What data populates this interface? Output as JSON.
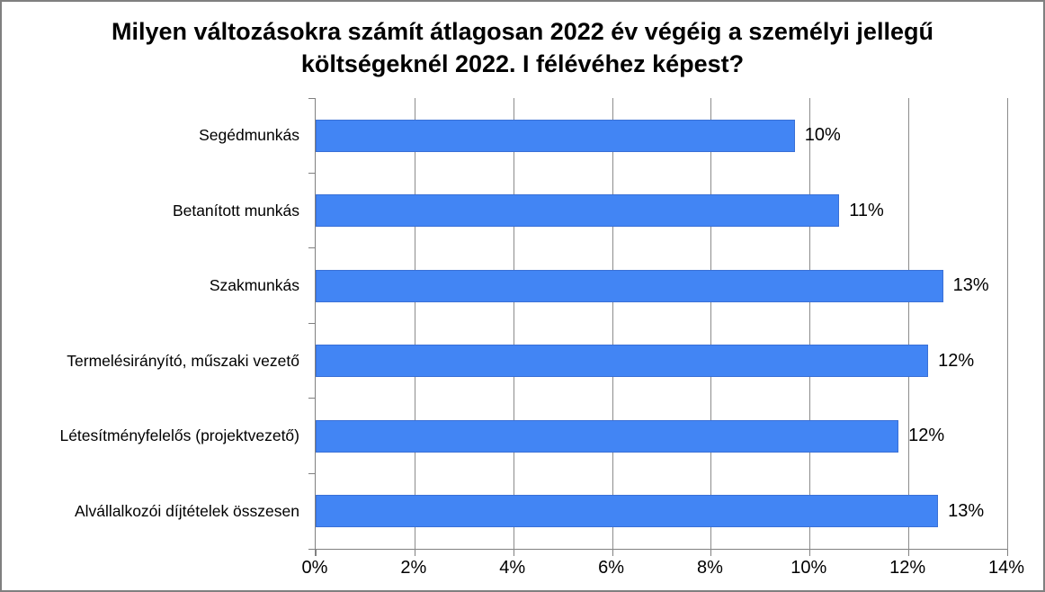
{
  "window": {
    "background": "#ffffff",
    "frame_border_color": "#808080"
  },
  "chart_data": {
    "type": "bar",
    "orientation": "horizontal",
    "title": "Milyen változásokra számít átlagosan 2022 év végéig a személyi jellegű költségeknél 2022. I félévéhez képest?",
    "categories": [
      "Segédmunkás",
      "Betanított munkás",
      "Szakmunkás",
      "Termelésirányító, műszaki vezető",
      "Létesítményfelelős (projektvezető)",
      "Alvállalkozói díjtételek összesen"
    ],
    "values": [
      9.7,
      10.6,
      12.7,
      12.4,
      11.8,
      12.6
    ],
    "data_labels": [
      "10%",
      "11%",
      "13%",
      "12%",
      "12%",
      "13%"
    ],
    "xlabel": "",
    "ylabel": "",
    "xlim": [
      0,
      14
    ],
    "x_tick_values": [
      0,
      2,
      4,
      6,
      8,
      10,
      12,
      14
    ],
    "x_tick_labels": [
      "0%",
      "2%",
      "4%",
      "6%",
      "8%",
      "10%",
      "12%",
      "14%"
    ],
    "grid": "vertical",
    "legend": "none",
    "bar_color": "#4285F4",
    "bar_border_color": "#3a70d6",
    "gridline_color": "#8c8c8c",
    "axis_color": "#808080",
    "text_color": "#000000"
  }
}
